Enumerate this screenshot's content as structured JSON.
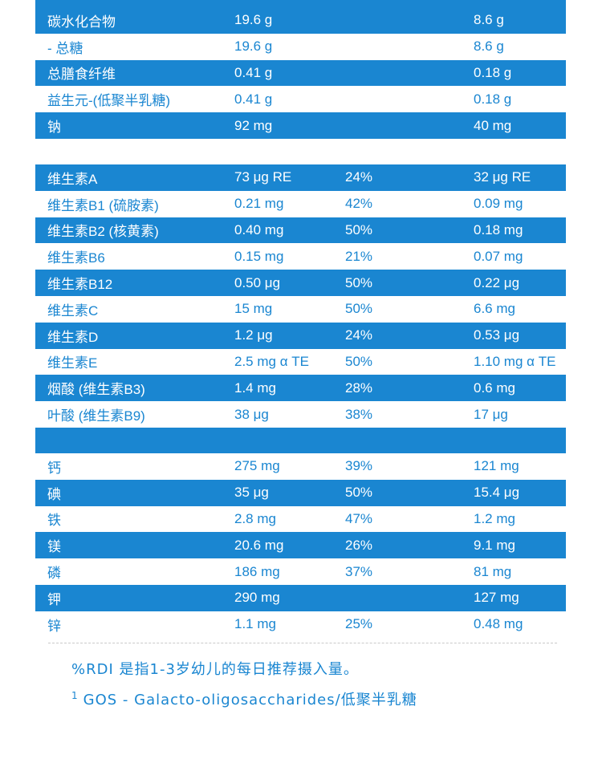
{
  "group1": [
    {
      "name": "碳水化合物",
      "value": "19.6 g",
      "pct": "",
      "value2": "8.6 g",
      "style": "blue"
    },
    {
      "name": " - 总糖",
      "value": "19.6 g",
      "pct": "",
      "value2": "8.6 g",
      "style": "white"
    },
    {
      "name": "总膳食纤维",
      "value": "0.41 g",
      "pct": "",
      "value2": "0.18 g",
      "style": "blue"
    },
    {
      "name": "益生元-(低聚半乳糖)",
      "value": "0.41 g",
      "pct": "",
      "value2": "0.18 g",
      "style": "white"
    },
    {
      "name": "钠",
      "value": "92 mg",
      "pct": "",
      "value2": "40 mg",
      "style": "blue"
    }
  ],
  "group2": [
    {
      "name": "维生素A",
      "value": "73 μg RE",
      "pct": "24%",
      "value2": "32 μg RE",
      "style": "blue"
    },
    {
      "name": "维生素B1 (硫胺素)",
      "value": "0.21 mg",
      "pct": "42%",
      "value2": "0.09 mg",
      "style": "white"
    },
    {
      "name": "维生素B2 (核黄素)",
      "value": "0.40 mg",
      "pct": "50%",
      "value2": "0.18 mg",
      "style": "blue"
    },
    {
      "name": "维生素B6",
      "value": "0.15 mg",
      "pct": "21%",
      "value2": "0.07 mg",
      "style": "white"
    },
    {
      "name": "维生素B12",
      "value": "0.50 μg",
      "pct": "50%",
      "value2": "0.22 μg",
      "style": "blue"
    },
    {
      "name": "维生素C",
      "value": "15 mg",
      "pct": "50%",
      "value2": "6.6 mg",
      "style": "white"
    },
    {
      "name": "维生素D",
      "value": "1.2 μg",
      "pct": "24%",
      "value2": "0.53 μg",
      "style": "blue"
    },
    {
      "name": "维生素E",
      "value": "2.5 mg α TE",
      "pct": "50%",
      "value2": "1.10 mg α TE",
      "style": "white"
    },
    {
      "name": "烟酸 (维生素B3)",
      "value": "1.4 mg",
      "pct": "28%",
      "value2": "0.6 mg",
      "style": "blue"
    },
    {
      "name": "叶酸 (维生素B9)",
      "value": "38 μg",
      "pct": "38%",
      "value2": "17 μg",
      "style": "white"
    },
    {
      "name": "",
      "value": "",
      "pct": "",
      "value2": "",
      "style": "blue"
    }
  ],
  "group3": [
    {
      "name": "钙",
      "value": "275 mg",
      "pct": "39%",
      "value2": "121 mg",
      "style": "white"
    },
    {
      "name": "碘",
      "value": "35 μg",
      "pct": "50%",
      "value2": "15.4 μg",
      "style": "blue"
    },
    {
      "name": "铁",
      "value": "2.8 mg",
      "pct": "47%",
      "value2": "1.2 mg",
      "style": "white"
    },
    {
      "name": "镁",
      "value": "20.6 mg",
      "pct": "26%",
      "value2": "9.1 mg",
      "style": "blue"
    },
    {
      "name": "磷",
      "value": "186 mg",
      "pct": "37%",
      "value2": "81 mg",
      "style": "white"
    },
    {
      "name": "钾",
      "value": "290 mg",
      "pct": "",
      "value2": "127 mg",
      "style": "blue"
    },
    {
      "name": "锌",
      "value": "1.1 mg",
      "pct": "25%",
      "value2": "0.48 mg",
      "style": "white"
    }
  ],
  "footnotes": {
    "rdi": "%RDI 是指1-3岁幼儿的每日推荐摄入量。",
    "gos_mark": "1",
    "gos": "GOS - Galacto-oligosaccharides/低聚半乳糖"
  }
}
